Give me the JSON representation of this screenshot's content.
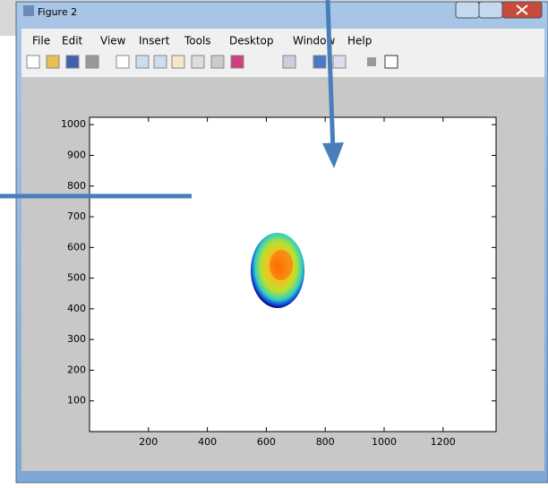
{
  "window": {
    "title": "Figure 2"
  },
  "menu": [
    "File",
    "Edit",
    "View",
    "Insert",
    "Tools",
    "Desktop",
    "Window",
    "Help"
  ],
  "chart_data": {
    "type": "image",
    "xlim": [
      0,
      1380
    ],
    "ylim": [
      0,
      1024
    ],
    "xticks": [
      200,
      400,
      600,
      800,
      1000,
      1200
    ],
    "yticks": [
      100,
      200,
      300,
      400,
      500,
      600,
      700,
      800,
      900,
      1000
    ]
  }
}
